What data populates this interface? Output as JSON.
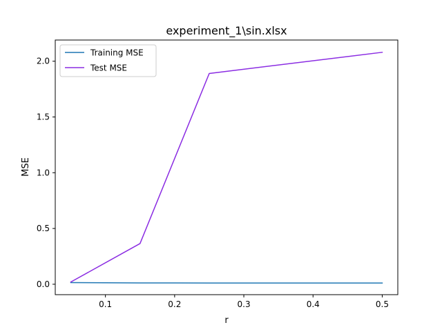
{
  "chart_data": {
    "type": "line",
    "title": "experiment_1\\sin.xlsx",
    "xlabel": "r",
    "ylabel": "MSE",
    "xlim": [
      0.0275,
      0.5225
    ],
    "ylim": [
      -0.0935,
      2.19
    ],
    "xticks": [
      0.1,
      0.2,
      0.3,
      0.4,
      0.5
    ],
    "xtick_labels": [
      "0.1",
      "0.2",
      "0.3",
      "0.4",
      "0.5"
    ],
    "yticks": [
      0.0,
      0.5,
      1.0,
      1.5,
      2.0
    ],
    "ytick_labels": [
      "0.0",
      "0.5",
      "1.0",
      "1.5",
      "2.0"
    ],
    "grid": false,
    "legend_position": "upper-left",
    "x": [
      0.05,
      0.15,
      0.25,
      0.5
    ],
    "series": [
      {
        "name": "Training MSE",
        "color": "#1f77b4",
        "values": [
          0.015,
          0.012,
          0.011,
          0.011
        ]
      },
      {
        "name": "Test MSE",
        "color": "#8a2be2",
        "values": [
          0.02,
          0.365,
          1.89,
          2.08
        ]
      }
    ]
  }
}
